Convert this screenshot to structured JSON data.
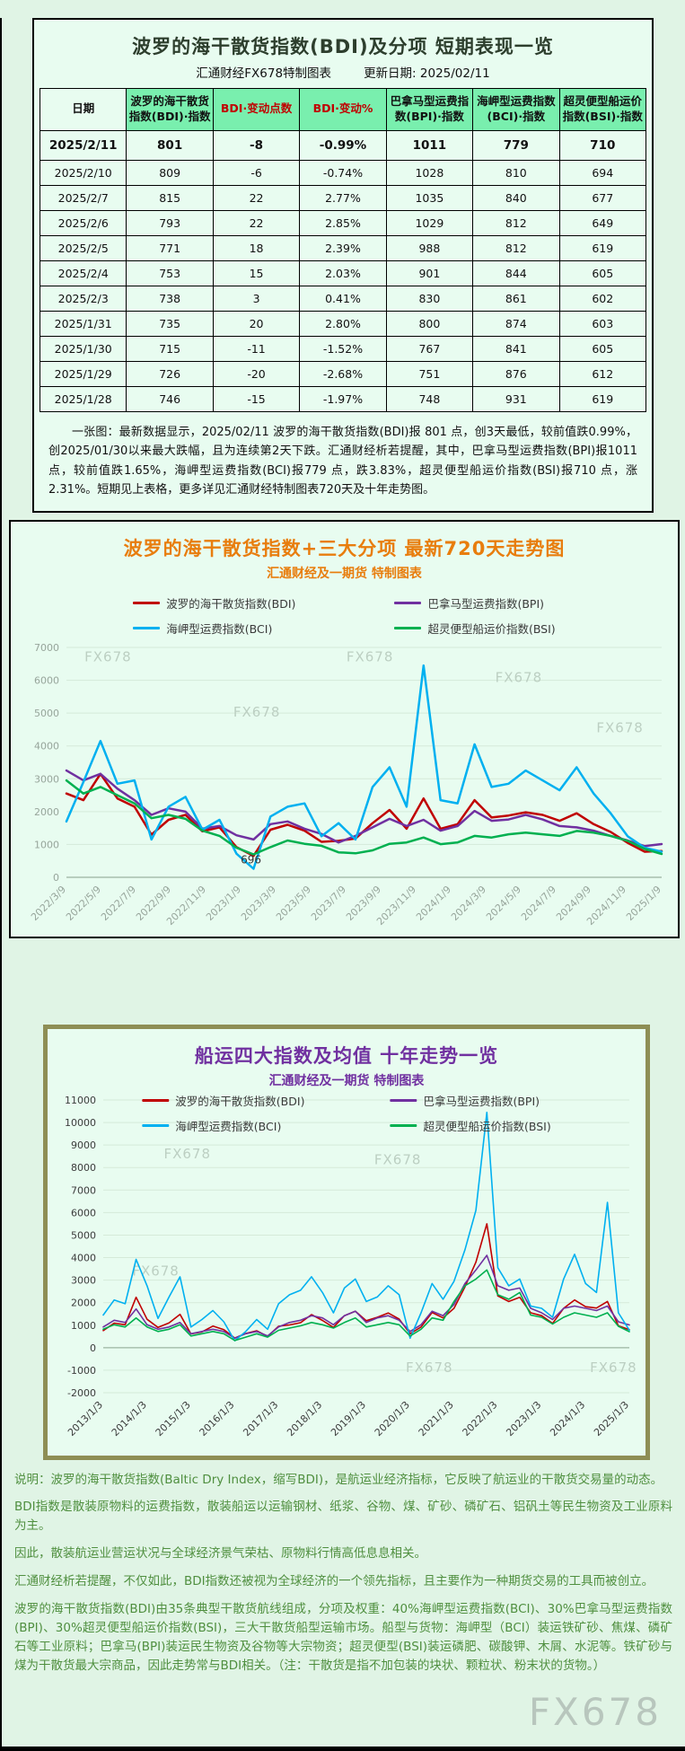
{
  "page": {
    "watermark": "FX678"
  },
  "table_section": {
    "title": "波罗的海干散货指数(BDI)及分项 短期表现一览",
    "source": "汇通财经FX678特制图表",
    "update": "更新日期: 2025/02/11",
    "headers": [
      "日期",
      "波罗的海干散货指数(BDI)·指数",
      "BDI·变动点数",
      "BDI·变动%",
      "巴拿马型运费指数(BPI)·指数",
      "海岬型运费指数(BCI)·指数",
      "超灵便型船运价指数(BSI)·指数"
    ],
    "rows": [
      [
        "2025/2/11",
        "801",
        "-8",
        "-0.99%",
        "1011",
        "779",
        "710"
      ],
      [
        "2025/2/10",
        "809",
        "-6",
        "-0.74%",
        "1028",
        "810",
        "694"
      ],
      [
        "2025/2/7",
        "815",
        "22",
        "2.77%",
        "1035",
        "840",
        "677"
      ],
      [
        "2025/2/6",
        "793",
        "22",
        "2.85%",
        "1029",
        "812",
        "649"
      ],
      [
        "2025/2/5",
        "771",
        "18",
        "2.39%",
        "988",
        "812",
        "619"
      ],
      [
        "2025/2/4",
        "753",
        "15",
        "2.03%",
        "901",
        "844",
        "605"
      ],
      [
        "2025/2/3",
        "738",
        "3",
        "0.41%",
        "830",
        "861",
        "602"
      ],
      [
        "2025/1/31",
        "735",
        "20",
        "2.80%",
        "800",
        "874",
        "603"
      ],
      [
        "2025/1/30",
        "715",
        "-11",
        "-1.52%",
        "767",
        "841",
        "605"
      ],
      [
        "2025/1/29",
        "726",
        "-20",
        "-2.68%",
        "751",
        "876",
        "612"
      ],
      [
        "2025/1/28",
        "746",
        "-15",
        "-1.97%",
        "748",
        "931",
        "619"
      ]
    ],
    "note": "一张图：最新数据显示，2025/02/11 波罗的海干散货指数(BDI)报 801 点，创3天最低，较前值跌0.99%，创2025/01/30以来最大跌幅，且为连续第2天下跌。汇通财经析若提醒，其中，巴拿马型运费指数(BPI)报1011 点，较前值跌1.65%，海岬型运费指数(BCI)报779 点，跌3.83%，超灵便型船运价指数(BSI)报710 点，涨2.31%。短期见上表格，更多详见汇通财经特制图表720天及十年走势图。"
  },
  "chart_data": [
    {
      "type": "line",
      "title": "波罗的海干散货指数+三大分项  最新720天走势图",
      "subtitle": "汇通财经及一期货 特制图表",
      "legend_position": "top",
      "grid": true,
      "ylim": [
        0,
        7000
      ],
      "ytick": 1000,
      "x_labels": [
        "2022/3/9",
        "2022/5/9",
        "2022/7/9",
        "2022/9/9",
        "2022/11/9",
        "2023/1/9",
        "2023/3/9",
        "2023/5/9",
        "2023/7/9",
        "2023/9/9",
        "2023/11/9",
        "2024/1/9",
        "2024/3/9",
        "2024/5/9",
        "2024/7/9",
        "2024/9/9",
        "2024/11/9",
        "2025/1/9"
      ],
      "annotation": {
        "text": "696",
        "x_frac": 0.31,
        "y_value": 430
      },
      "watermarks": [
        [
          0.07,
          0.06
        ],
        [
          0.51,
          0.06
        ],
        [
          0.76,
          0.15
        ],
        [
          0.32,
          0.3
        ],
        [
          0.93,
          0.37
        ]
      ],
      "series": [
        {
          "name": "波罗的海干散货指数(BDI)",
          "color": "#c00000",
          "values": [
            2550,
            2350,
            3150,
            2400,
            2150,
            1300,
            1750,
            1900,
            1400,
            1520,
            920,
            650,
            1450,
            1600,
            1420,
            1080,
            1110,
            1180,
            1650,
            2050,
            1480,
            2400,
            1480,
            1620,
            2350,
            1820,
            1880,
            1980,
            1900,
            1720,
            1950,
            1620,
            1380,
            1050,
            780,
            801
          ]
        },
        {
          "name": "巴拿马型运费指数(BPI)",
          "color": "#7030a0",
          "values": [
            3250,
            2950,
            3150,
            2700,
            2350,
            1900,
            2100,
            2000,
            1480,
            1560,
            1280,
            1150,
            1620,
            1700,
            1480,
            1320,
            1060,
            1260,
            1520,
            1780,
            1560,
            1750,
            1420,
            1560,
            2020,
            1720,
            1760,
            1900,
            1760,
            1560,
            1520,
            1420,
            1260,
            1120,
            950,
            1011
          ]
        },
        {
          "name": "海岬型运费指数(BCI)",
          "color": "#00b0f0",
          "values": [
            1700,
            2900,
            4150,
            2850,
            2950,
            1150,
            2150,
            2450,
            1450,
            1750,
            720,
            260,
            1850,
            2150,
            2250,
            1250,
            1650,
            1150,
            2750,
            3350,
            2150,
            6450,
            2350,
            2250,
            4050,
            2750,
            2850,
            3250,
            2950,
            2650,
            3350,
            2550,
            1950,
            1250,
            900,
            779
          ]
        },
        {
          "name": "超灵便型船运价指数(BSI)",
          "color": "#00b050",
          "values": [
            2950,
            2550,
            2750,
            2500,
            2250,
            1800,
            1900,
            1780,
            1420,
            1260,
            900,
            696,
            920,
            1120,
            1020,
            960,
            760,
            730,
            820,
            1020,
            1060,
            1210,
            1010,
            1060,
            1260,
            1210,
            1310,
            1360,
            1310,
            1260,
            1410,
            1360,
            1260,
            1110,
            860,
            710
          ]
        }
      ]
    },
    {
      "type": "line",
      "title": "船运四大指数及均值 十年走势一览",
      "subtitle": "汇通财经及一期货 特制图表",
      "legend_position": "inside-top",
      "grid": true,
      "ylim": [
        -2000,
        11000
      ],
      "ytick": 1000,
      "x_labels": [
        "2013/1/3",
        "2014/1/3",
        "2015/1/3",
        "2016/1/3",
        "2017/1/3",
        "2018/1/3",
        "2019/1/3",
        "2020/1/3",
        "2021/1/3",
        "2022/1/3",
        "2023/1/3",
        "2024/1/3",
        "2025/1/3"
      ],
      "watermarks": [
        [
          0.16,
          0.2
        ],
        [
          0.56,
          0.22
        ],
        [
          0.1,
          0.6
        ],
        [
          0.62,
          0.93
        ],
        [
          0.97,
          0.93
        ]
      ],
      "series": [
        {
          "name": "波罗的海干散货指数(BDI)",
          "color": "#c00000",
          "values": [
            760,
            1090,
            1020,
            2240,
            1260,
            900,
            1100,
            1480,
            610,
            700,
            960,
            800,
            430,
            630,
            750,
            500,
            950,
            1010,
            1110,
            1470,
            1210,
            900,
            1420,
            1620,
            1200,
            1350,
            1540,
            1270,
            620,
            920,
            1560,
            1320,
            1750,
            2700,
            3800,
            5500,
            2300,
            2050,
            2240,
            1550,
            1420,
            1080,
            1750,
            2120,
            1820,
            1760,
            2050,
            970,
            801
          ]
        },
        {
          "name": "巴拿马型运费指数(BPI)",
          "color": "#7030a0",
          "values": [
            920,
            1220,
            1120,
            1720,
            1020,
            820,
            920,
            1120,
            620,
            720,
            820,
            720,
            420,
            620,
            720,
            520,
            920,
            1120,
            1220,
            1420,
            1320,
            1020,
            1420,
            1620,
            1120,
            1320,
            1420,
            1220,
            720,
            1020,
            1620,
            1420,
            1920,
            2850,
            3450,
            4100,
            2750,
            2550,
            2650,
            1750,
            1550,
            1250,
            1750,
            1850,
            1750,
            1650,
            1850,
            1150,
            1011
          ]
        },
        {
          "name": "海岬型运费指数(BCI)",
          "color": "#00b0f0",
          "values": [
            1450,
            2120,
            1950,
            3920,
            2750,
            1300,
            2250,
            3150,
            920,
            1250,
            1650,
            1150,
            310,
            720,
            1250,
            820,
            1950,
            2350,
            2550,
            3150,
            2450,
            1550,
            2650,
            3050,
            2050,
            2250,
            2750,
            2350,
            420,
            1550,
            2850,
            2150,
            2950,
            4350,
            6100,
            10450,
            3550,
            2750,
            3050,
            1850,
            1750,
            1350,
            3050,
            4150,
            2850,
            2450,
            6450,
            1550,
            779
          ]
        },
        {
          "name": "超灵便型船运价指数(BSI)",
          "color": "#00b050",
          "values": [
            820,
            1020,
            920,
            1320,
            920,
            720,
            820,
            1020,
            520,
            620,
            720,
            620,
            320,
            470,
            620,
            470,
            770,
            870,
            970,
            1120,
            1020,
            870,
            1120,
            1320,
            920,
            1020,
            1120,
            1020,
            520,
            820,
            1320,
            1220,
            2050,
            2750,
            3050,
            3450,
            2350,
            2150,
            2450,
            1450,
            1350,
            1050,
            1350,
            1550,
            1450,
            1350,
            1550,
            950,
            710
          ]
        }
      ]
    }
  ],
  "footer": {
    "lines": [
      "说明：波罗的海干散货指数(Baltic Dry Index，缩写BDI)，是航运业经济指标，它反映了航运业的干散货交易量的动态。",
      "BDI指数是散装原物料的运费指数，散装船运以运输钢材、纸浆、谷物、煤、矿砂、磷矿石、铝矾土等民生物资及工业原料为主。",
      "因此，散装航运业营运状况与全球经济景气荣枯、原物料行情高低息息相关。",
      "汇通财经析若提醒，不仅如此，BDI指数还被视为全球经济的一个领先指标，且主要作为一种期货交易的工具而被创立。",
      "波罗的海干散货指数(BDI)由35条典型干散货航线组成，分项及权重：40%海岬型运费指数(BCI)、30%巴拿马型运费指数(BPI)、30%超灵便型船运价指数(BSI)，三大干散货船型运输市场。船型与货物：海岬型（BCI）装运铁矿砂、焦煤、磷矿石等工业原料；巴拿马(BPI)装运民生物资及谷物等大宗物资；超灵便型(BSI)装运磷肥、碳酸钾、木屑、水泥等。铁矿砂与煤为干散货最大宗商品，因此走势常与BDI相关。（注：干散货是指不加包装的块状、颗粒状、粉末状的货物。）"
    ]
  }
}
